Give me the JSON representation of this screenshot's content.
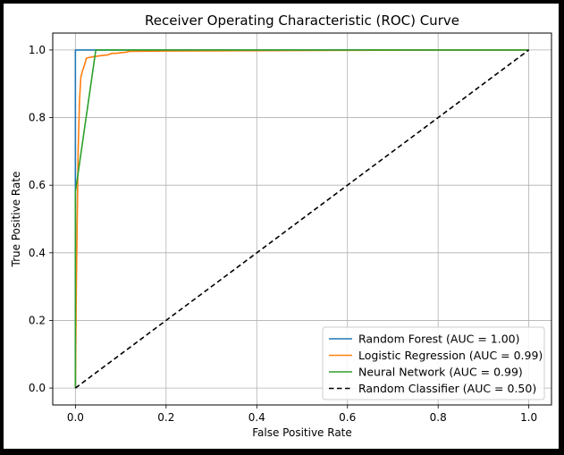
{
  "chart_data": {
    "type": "line",
    "title": "Receiver Operating Characteristic (ROC) Curve",
    "xlabel": "False Positive Rate",
    "ylabel": "True Positive Rate",
    "xlim": [
      -0.05,
      1.05
    ],
    "ylim": [
      -0.05,
      1.05
    ],
    "xticks": [
      0.0,
      0.2,
      0.4,
      0.6,
      0.8,
      1.0
    ],
    "yticks": [
      0.0,
      0.2,
      0.4,
      0.6,
      0.8,
      1.0
    ],
    "xtick_labels": [
      "0.0",
      "0.2",
      "0.4",
      "0.6",
      "0.8",
      "1.0"
    ],
    "ytick_labels": [
      "0.0",
      "0.2",
      "0.4",
      "0.6",
      "0.8",
      "1.0"
    ],
    "grid": true,
    "legend_position": "bottom-right",
    "series": [
      {
        "name": "Random Forest (AUC = 1.00)",
        "color": "#1f77b4",
        "style": "solid",
        "x": [
          0.0,
          0.0,
          0.045,
          1.0
        ],
        "y": [
          0.0,
          1.0,
          1.0,
          1.0
        ]
      },
      {
        "name": "Logistic Regression (AUC = 0.99)",
        "color": "#ff7f0e",
        "style": "solid",
        "x": [
          0.0,
          0.002,
          0.004,
          0.006,
          0.009,
          0.012,
          0.016,
          0.02,
          0.024,
          0.03,
          0.04,
          0.05,
          0.06,
          0.07,
          0.08,
          0.09,
          0.1,
          0.11,
          0.12,
          0.2,
          0.4,
          0.6,
          0.8,
          1.0
        ],
        "y": [
          0.0,
          0.3,
          0.5,
          0.7,
          0.85,
          0.92,
          0.94,
          0.955,
          0.975,
          0.978,
          0.98,
          0.982,
          0.984,
          0.985,
          0.99,
          0.99,
          0.992,
          0.993,
          0.996,
          0.997,
          0.998,
          0.999,
          1.0,
          1.0
        ]
      },
      {
        "name": "Neural Network (AUC = 0.99)",
        "color": "#2ca02c",
        "style": "solid",
        "x": [
          0.0,
          0.0,
          0.045,
          0.2,
          1.0
        ],
        "y": [
          0.0,
          0.58,
          1.0,
          1.0,
          1.0
        ]
      },
      {
        "name": "Random Classifier (AUC = 0.50)",
        "color": "#000000",
        "style": "dashed",
        "x": [
          0.0,
          1.0
        ],
        "y": [
          0.0,
          1.0
        ]
      }
    ]
  }
}
